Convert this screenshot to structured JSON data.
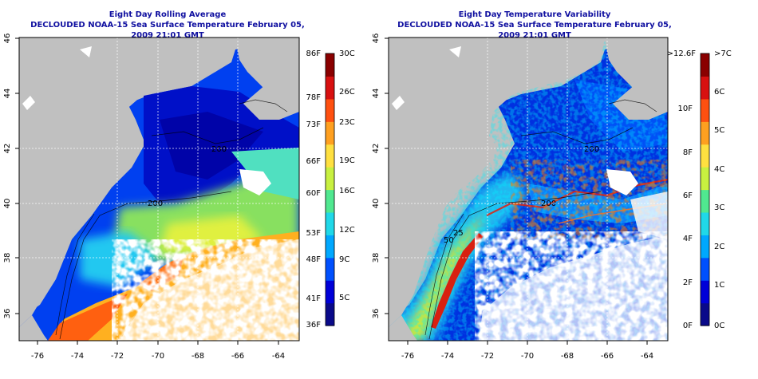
{
  "colors": {
    "title": "#1010a0",
    "land": "#c0c0c0",
    "cloud": "#ffffff",
    "colormap": [
      "#0a0a8a",
      "#0000d8",
      "#0050ff",
      "#00a8ff",
      "#20d8e8",
      "#50e890",
      "#c8f040",
      "#ffe040",
      "#ffa020",
      "#ff5010",
      "#d81010",
      "#8a0000"
    ]
  },
  "panels": [
    {
      "id": "rolling-average",
      "title_line1": "Eight Day Rolling Average",
      "title_line2": "DECLOUDED NOAA-15 Sea Surface Temperature February 05, 2009 21:01 GMT",
      "x_ticks": [
        "-76",
        "-74",
        "-72",
        "-70",
        "-68",
        "-66",
        "-64"
      ],
      "y_ticks": [
        "46",
        "44",
        "42",
        "40",
        "38",
        "36"
      ],
      "contour_labels": [
        "200",
        "200"
      ],
      "colorbar": {
        "left_labels": [
          "86F",
          "78F",
          "73F",
          "66F",
          "60F",
          "53F",
          "48F",
          "41F",
          "36F"
        ],
        "right_labels": [
          "30C",
          "26C",
          "23C",
          "19C",
          "16C",
          "12C",
          "9C",
          "5C"
        ]
      }
    },
    {
      "id": "temperature-variability",
      "title_line1": "Eight Day Temperature Variability",
      "title_line2": "DECLOUDED NOAA-15 Sea Surface Temperature February 05, 2009 21:01 GMT",
      "x_ticks": [
        "-76",
        "-74",
        "-72",
        "-70",
        "-68",
        "-66",
        "-64"
      ],
      "y_ticks": [
        "46",
        "44",
        "42",
        "40",
        "38",
        "36"
      ],
      "contour_labels": [
        "200",
        "200",
        "50",
        "25"
      ],
      "colorbar": {
        "left_labels": [
          ">12.6F",
          "10F",
          "8F",
          "6F",
          "4F",
          "2F",
          "0F"
        ],
        "right_labels": [
          ">7C",
          "6C",
          "5C",
          "4C",
          "3C",
          "2C",
          "1C",
          "0C"
        ]
      }
    }
  ]
}
